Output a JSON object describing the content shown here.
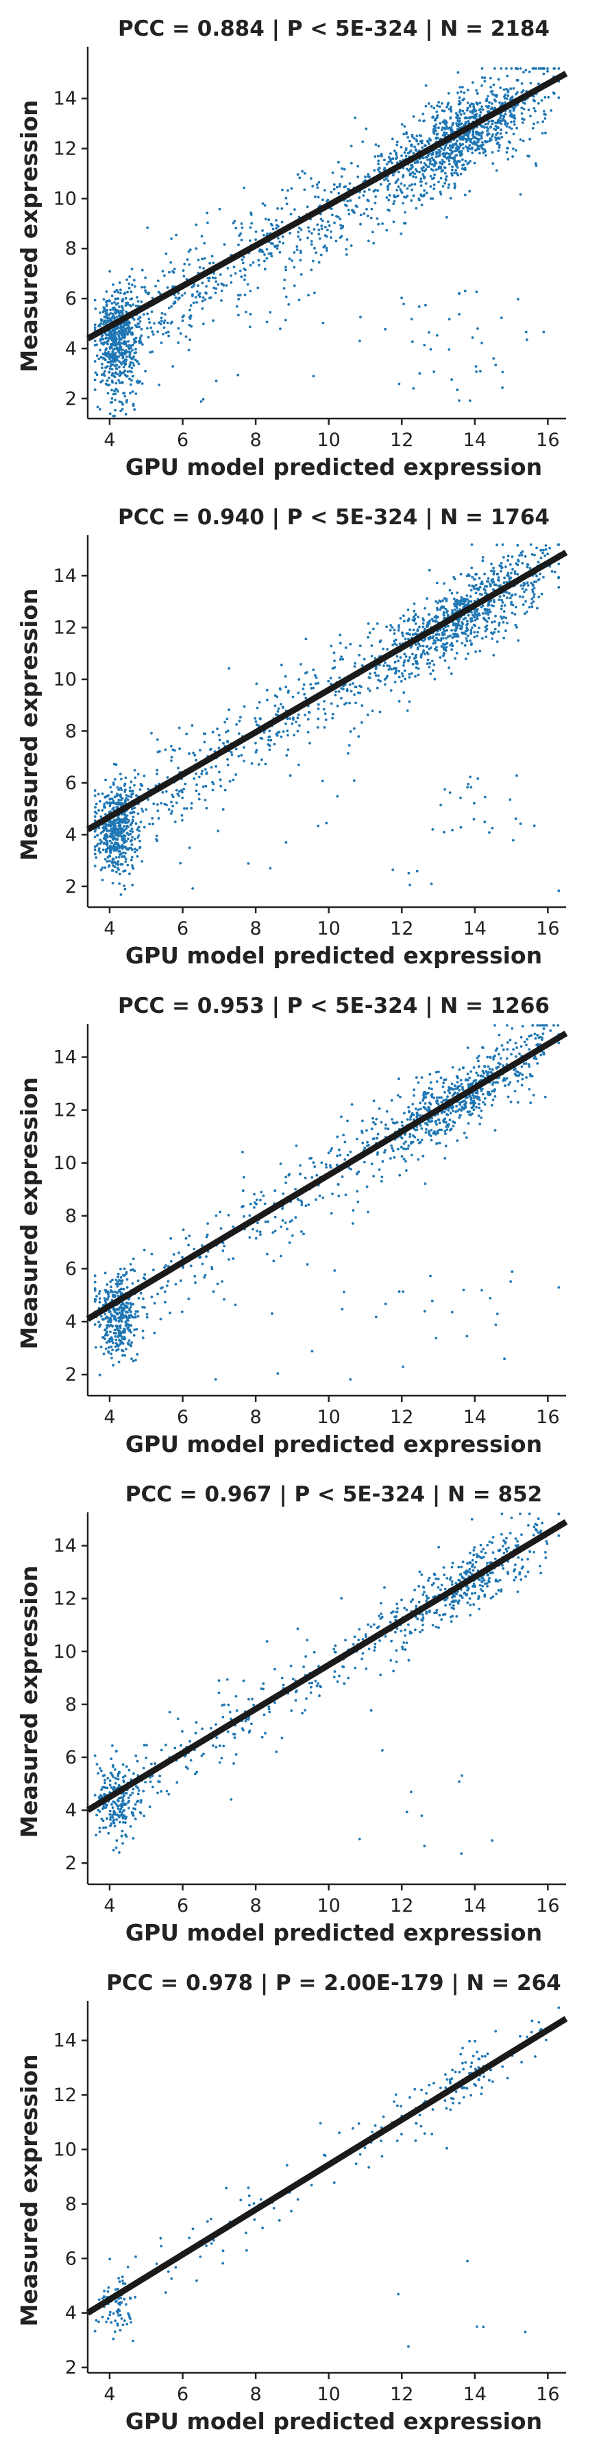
{
  "chart_data": [
    {
      "type": "scatter",
      "title": "PCC =  0.884 | P <  5E-324 | N = 2184",
      "xlabel": "GPU model predicted expression",
      "ylabel": "Measured expression",
      "xlim": [
        3.4,
        16.5
      ],
      "ylim": [
        1.2,
        15.8
      ],
      "xticks": [
        4,
        6,
        8,
        10,
        12,
        14,
        16
      ],
      "yticks": [
        2,
        4,
        6,
        8,
        10,
        12,
        14
      ],
      "n": 2184,
      "fit_line": {
        "x": [
          3.4,
          16.5
        ],
        "y": [
          4.4,
          15.0
        ]
      },
      "color": "#1f77b4",
      "line_color": "#1a1a1a"
    },
    {
      "type": "scatter",
      "title": "PCC =  0.940 | P <  5E-324 | N = 1764",
      "xlabel": "GPU model predicted expression",
      "ylabel": "Measured expression",
      "xlim": [
        3.4,
        16.5
      ],
      "ylim": [
        1.2,
        15.3
      ],
      "xticks": [
        4,
        6,
        8,
        10,
        12,
        14,
        16
      ],
      "yticks": [
        2,
        4,
        6,
        8,
        10,
        12,
        14
      ],
      "n": 1764,
      "fit_line": {
        "x": [
          3.4,
          16.5
        ],
        "y": [
          4.2,
          14.9
        ]
      },
      "color": "#1f77b4",
      "line_color": "#1a1a1a"
    },
    {
      "type": "scatter",
      "title": "PCC =  0.953 | P <  5E-324 | N = 1266",
      "xlabel": "GPU model predicted expression",
      "ylabel": "Measured expression",
      "xlim": [
        3.4,
        16.5
      ],
      "ylim": [
        1.2,
        15.0
      ],
      "xticks": [
        4,
        6,
        8,
        10,
        12,
        14,
        16
      ],
      "yticks": [
        2,
        4,
        6,
        8,
        10,
        12,
        14
      ],
      "n": 1266,
      "fit_line": {
        "x": [
          3.4,
          16.5
        ],
        "y": [
          4.1,
          14.9
        ]
      },
      "color": "#1f77b4",
      "line_color": "#1a1a1a"
    },
    {
      "type": "scatter",
      "title": "PCC =  0.967 | P <  5E-324 | N = 852",
      "xlabel": "GPU model predicted expression",
      "ylabel": "Measured expression",
      "xlim": [
        3.4,
        16.5
      ],
      "ylim": [
        1.2,
        15.0
      ],
      "xticks": [
        4,
        6,
        8,
        10,
        12,
        14,
        16
      ],
      "yticks": [
        2,
        4,
        6,
        8,
        10,
        12,
        14
      ],
      "n": 852,
      "fit_line": {
        "x": [
          3.4,
          16.5
        ],
        "y": [
          4.0,
          14.9
        ]
      },
      "color": "#1f77b4",
      "line_color": "#1a1a1a"
    },
    {
      "type": "scatter",
      "title": "PCC =  0.978 | P =  2.00E-179 | N = 264",
      "xlabel": "GPU model predicted expression",
      "ylabel": "Measured expression",
      "xlim": [
        3.4,
        16.5
      ],
      "ylim": [
        1.8,
        15.2
      ],
      "xticks": [
        4,
        6,
        8,
        10,
        12,
        14,
        16
      ],
      "yticks": [
        2,
        4,
        6,
        8,
        10,
        12,
        14
      ],
      "n": 264,
      "fit_line": {
        "x": [
          3.4,
          16.5
        ],
        "y": [
          4.0,
          14.8
        ]
      },
      "color": "#1f77b4",
      "line_color": "#1a1a1a"
    }
  ]
}
